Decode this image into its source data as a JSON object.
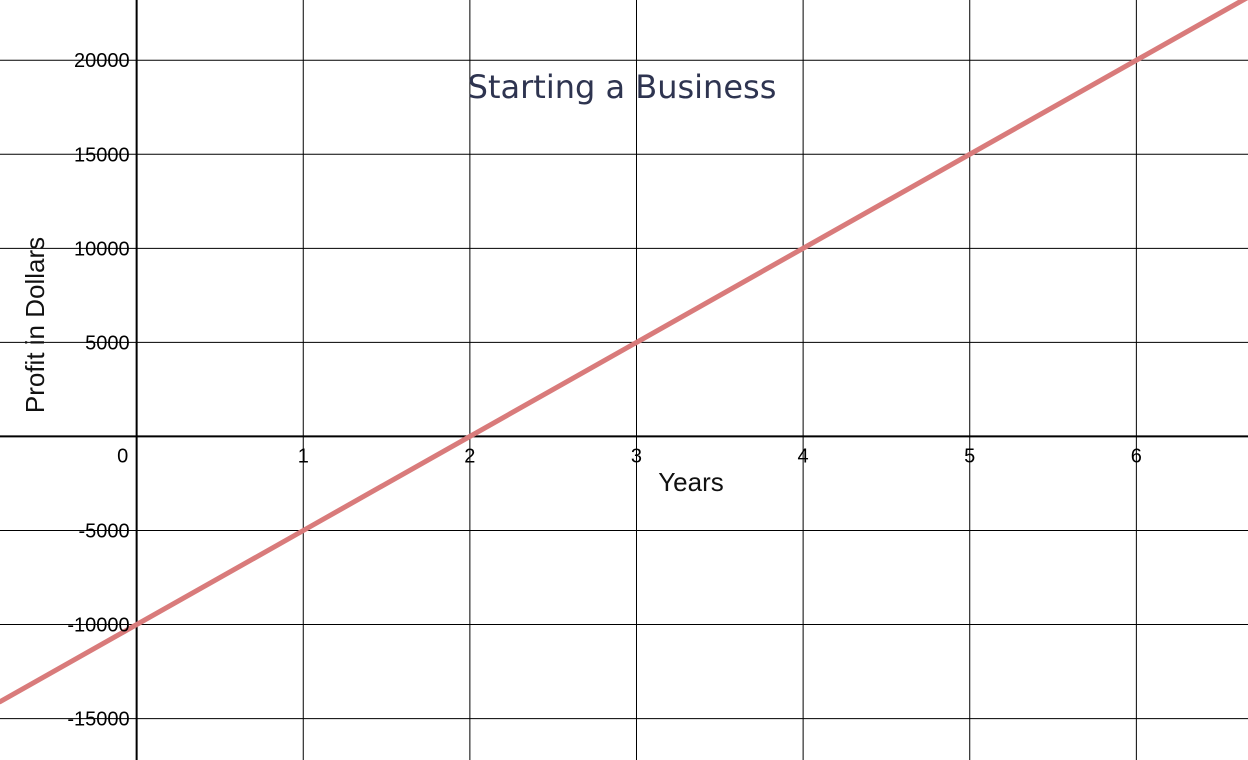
{
  "chart_data": {
    "type": "line",
    "title": "Starting a Business",
    "xlabel": "Years",
    "ylabel": "Profit in Dollars",
    "x_ticks": [
      "0",
      "1",
      "2",
      "3",
      "4",
      "5",
      "6"
    ],
    "y_ticks": [
      "20000",
      "15000",
      "10000",
      "5000",
      "-5000",
      "-10000",
      "-15000"
    ],
    "xlim": [
      -0.82,
      6.67
    ],
    "ylim": [
      -17200,
      23200
    ],
    "grid": true,
    "series": [
      {
        "color": "#d97b7b",
        "equation": "y = 5000x - 10000",
        "x": [
          -0.82,
          0,
          1,
          2,
          3,
          4,
          5,
          6,
          6.67
        ],
        "y": [
          -14100,
          -10000,
          -5000,
          0,
          5000,
          10000,
          15000,
          20000,
          23350
        ]
      }
    ]
  }
}
